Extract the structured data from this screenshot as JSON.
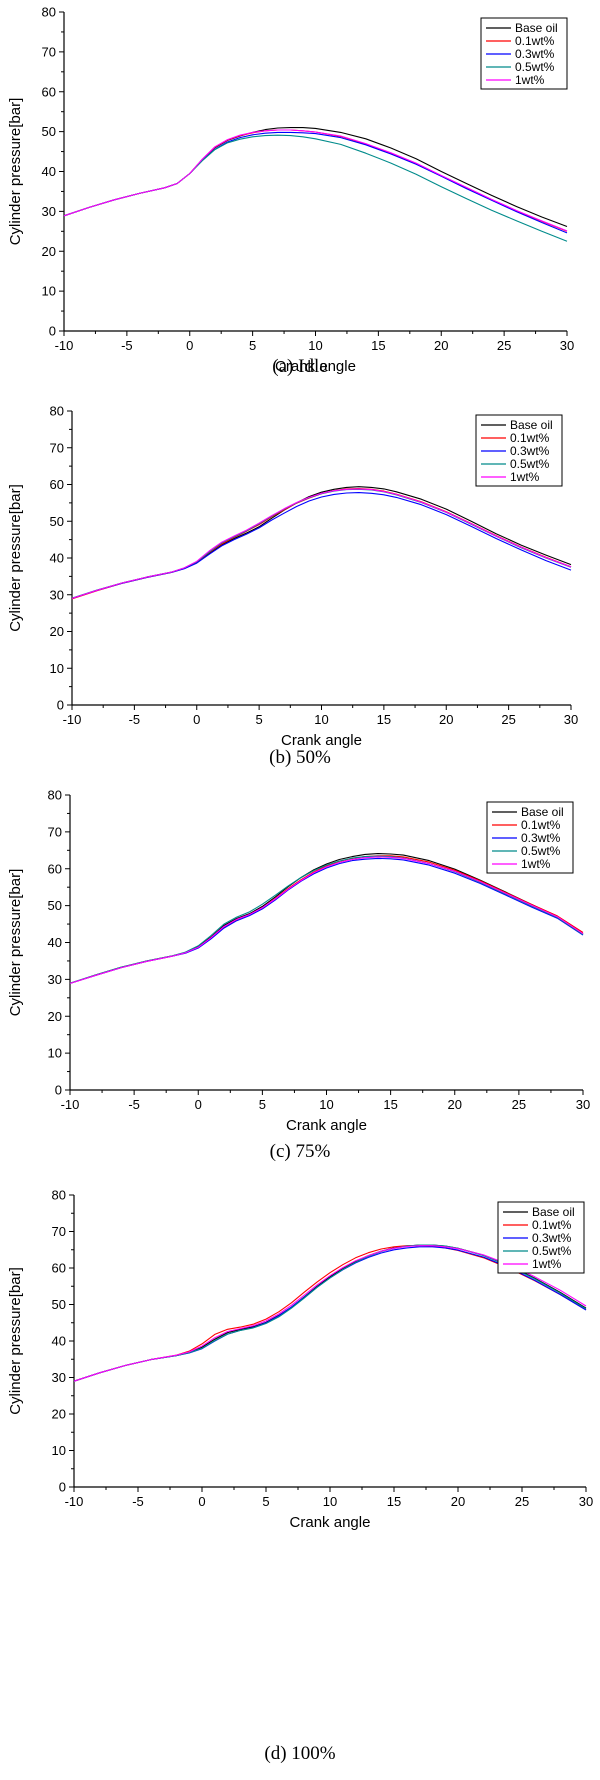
{
  "colors": {
    "Base oil": "#000000",
    "0.1wt%": "#ff0000",
    "0.3wt%": "#0000ff",
    "0.5wt%": "#008b8b",
    "1wt%": "#ff00ff"
  },
  "chart_data": [
    {
      "type": "line",
      "caption": "(a)  Idle",
      "xlabel": "Crank angle",
      "ylabel": "Cylinder pressure[bar]",
      "xlim": [
        -10,
        30
      ],
      "ylim": [
        0,
        80
      ],
      "xticks": [
        "-10",
        "-5",
        "0",
        "5",
        "10",
        "15",
        "20",
        "25",
        "30"
      ],
      "yticks": [
        "0",
        "10",
        "20",
        "30",
        "40",
        "50",
        "60",
        "70",
        "80"
      ],
      "legend_position": "top-right",
      "x": [
        -10,
        -8,
        -6,
        -4,
        -2,
        -1,
        0,
        1,
        2,
        3,
        4,
        5,
        6,
        7,
        8,
        9,
        10,
        12,
        14,
        16,
        18,
        20,
        22,
        24,
        26,
        28,
        30
      ],
      "series": [
        {
          "name": "Base oil",
          "values": [
            28.9,
            31.0,
            32.9,
            34.5,
            35.9,
            37.0,
            39.5,
            43.0,
            46.0,
            47.8,
            48.9,
            49.8,
            50.5,
            50.9,
            51.0,
            51.0,
            50.8,
            49.8,
            48.2,
            45.9,
            43.2,
            40.0,
            37.0,
            34.0,
            31.2,
            28.6,
            26.2
          ]
        },
        {
          "name": "0.1wt%",
          "values": [
            28.9,
            31.0,
            32.9,
            34.5,
            35.9,
            37.0,
            39.5,
            43.0,
            46.1,
            47.9,
            49.0,
            49.7,
            50.2,
            50.4,
            50.4,
            50.2,
            49.9,
            48.8,
            46.9,
            44.5,
            41.9,
            38.9,
            35.8,
            32.9,
            30.1,
            27.5,
            25.0
          ]
        },
        {
          "name": "0.3wt%",
          "values": [
            28.9,
            31.0,
            32.9,
            34.5,
            35.9,
            37.0,
            39.5,
            42.8,
            45.6,
            47.4,
            48.5,
            49.2,
            49.6,
            49.8,
            49.8,
            49.7,
            49.5,
            48.5,
            46.7,
            44.4,
            41.8,
            38.8,
            35.7,
            32.8,
            29.9,
            27.2,
            24.6
          ]
        },
        {
          "name": "0.5wt%",
          "values": [
            28.9,
            31.0,
            32.9,
            34.5,
            35.9,
            37.0,
            39.5,
            42.7,
            45.5,
            47.2,
            48.1,
            48.7,
            49.0,
            49.1,
            49.0,
            48.7,
            48.2,
            46.8,
            44.6,
            42.1,
            39.3,
            36.2,
            33.2,
            30.3,
            27.6,
            25.0,
            22.5
          ]
        },
        {
          "name": "1wt%",
          "values": [
            28.9,
            31.0,
            32.9,
            34.5,
            35.9,
            37.0,
            39.5,
            43.1,
            46.2,
            48.0,
            49.1,
            49.8,
            50.2,
            50.4,
            50.4,
            50.2,
            49.9,
            48.9,
            47.0,
            44.7,
            42.1,
            39.0,
            36.0,
            33.0,
            30.2,
            27.6,
            25.1
          ]
        }
      ]
    },
    {
      "type": "line",
      "caption": "(b)  50%",
      "xlabel": "Crank angle",
      "ylabel": "Cylinder pressure[bar]",
      "xlim": [
        -10,
        30
      ],
      "ylim": [
        0,
        80
      ],
      "xticks": [
        "-10",
        "-5",
        "0",
        "5",
        "10",
        "15",
        "20",
        "25",
        "30"
      ],
      "yticks": [
        "0",
        "10",
        "20",
        "30",
        "40",
        "50",
        "60",
        "70",
        "80"
      ],
      "legend_position": "top-right",
      "x": [
        -10,
        -8,
        -6,
        -4,
        -2,
        -1,
        0,
        1,
        2,
        3,
        4,
        5,
        6,
        7,
        8,
        9,
        10,
        11,
        12,
        13,
        14,
        15,
        16,
        18,
        20,
        22,
        24,
        26,
        28,
        30
      ],
      "series": [
        {
          "name": "Base oil",
          "values": [
            29.0,
            31.2,
            33.2,
            34.8,
            36.2,
            37.2,
            38.8,
            41.2,
            43.6,
            45.3,
            46.8,
            48.5,
            50.8,
            53.0,
            55.0,
            56.7,
            57.9,
            58.7,
            59.2,
            59.4,
            59.2,
            58.8,
            58.0,
            56.0,
            53.3,
            50.0,
            46.6,
            43.5,
            40.8,
            38.2
          ]
        },
        {
          "name": "0.1wt%",
          "values": [
            28.9,
            31.1,
            33.1,
            34.7,
            36.1,
            37.2,
            38.9,
            41.5,
            43.8,
            45.6,
            47.3,
            49.1,
            51.2,
            53.1,
            54.9,
            56.3,
            57.5,
            58.3,
            58.8,
            58.9,
            58.7,
            58.2,
            57.4,
            55.3,
            52.6,
            49.4,
            46.1,
            43.0,
            40.2,
            37.6
          ]
        },
        {
          "name": "0.3wt%",
          "values": [
            29.0,
            31.2,
            33.1,
            34.7,
            36.1,
            37.1,
            38.6,
            41.0,
            43.3,
            45.0,
            46.5,
            48.2,
            50.3,
            52.2,
            54.0,
            55.5,
            56.6,
            57.3,
            57.7,
            57.8,
            57.6,
            57.2,
            56.5,
            54.5,
            51.8,
            48.6,
            45.3,
            42.2,
            39.3,
            36.7
          ]
        },
        {
          "name": "0.5wt%",
          "values": [
            29.1,
            31.3,
            33.2,
            34.8,
            36.2,
            37.3,
            39.0,
            41.6,
            44.1,
            45.8,
            47.4,
            49.3,
            51.4,
            53.3,
            55.0,
            56.4,
            57.5,
            58.2,
            58.6,
            58.7,
            58.5,
            58.0,
            57.2,
            55.1,
            52.4,
            49.2,
            45.9,
            42.8,
            40.0,
            37.5
          ]
        },
        {
          "name": "1wt%",
          "values": [
            29.0,
            31.2,
            33.2,
            34.8,
            36.2,
            37.3,
            39.1,
            41.9,
            44.3,
            46.0,
            47.6,
            49.5,
            51.5,
            53.4,
            55.1,
            56.5,
            57.6,
            58.3,
            58.7,
            58.8,
            58.6,
            58.1,
            57.3,
            55.2,
            52.5,
            49.3,
            46.0,
            42.9,
            40.1,
            37.6
          ]
        }
      ]
    },
    {
      "type": "line",
      "caption": "(c)  75%",
      "xlabel": "Crank angle",
      "ylabel": "Cylinder pressure[bar]",
      "xlim": [
        -10,
        30
      ],
      "ylim": [
        0,
        80
      ],
      "xticks": [
        "-10",
        "-5",
        "0",
        "5",
        "10",
        "15",
        "20",
        "25",
        "30"
      ],
      "yticks": [
        "0",
        "10",
        "20",
        "30",
        "40",
        "50",
        "60",
        "70",
        "80"
      ],
      "legend_position": "top-right",
      "x": [
        -10,
        -8,
        -6,
        -4,
        -2,
        -1,
        0,
        1,
        2,
        3,
        4,
        5,
        6,
        7,
        8,
        9,
        10,
        11,
        12,
        13,
        14,
        15,
        16,
        18,
        20,
        22,
        24,
        26,
        28,
        30
      ],
      "series": [
        {
          "name": "Base oil",
          "values": [
            28.9,
            31.2,
            33.3,
            35.0,
            36.4,
            37.3,
            38.9,
            41.5,
            44.6,
            46.5,
            47.8,
            49.8,
            52.3,
            55.1,
            57.6,
            59.7,
            61.3,
            62.5,
            63.3,
            63.9,
            64.1,
            64.0,
            63.7,
            62.2,
            59.9,
            56.9,
            53.6,
            50.3,
            47.1,
            42.3
          ]
        },
        {
          "name": "0.1wt%",
          "values": [
            28.9,
            31.1,
            33.2,
            34.9,
            36.3,
            37.2,
            38.7,
            41.3,
            44.2,
            46.2,
            47.6,
            49.4,
            51.9,
            54.6,
            57.0,
            59.1,
            60.8,
            62.0,
            62.8,
            63.3,
            63.5,
            63.5,
            63.2,
            61.8,
            59.6,
            56.7,
            53.5,
            50.3,
            47.2,
            42.7
          ]
        },
        {
          "name": "0.3wt%",
          "values": [
            28.9,
            31.1,
            33.2,
            34.9,
            36.3,
            37.1,
            38.5,
            41.0,
            43.9,
            45.9,
            47.3,
            49.1,
            51.5,
            54.2,
            56.6,
            58.6,
            60.2,
            61.4,
            62.2,
            62.6,
            62.8,
            62.7,
            62.4,
            61.0,
            58.8,
            56.0,
            52.8,
            49.6,
            46.6,
            42.0
          ]
        },
        {
          "name": "0.5wt%",
          "values": [
            29.0,
            31.2,
            33.3,
            35.0,
            36.4,
            37.4,
            39.1,
            41.9,
            45.0,
            46.9,
            48.3,
            50.4,
            52.8,
            55.3,
            57.6,
            59.5,
            61.0,
            62.1,
            62.9,
            63.3,
            63.4,
            63.3,
            62.9,
            61.4,
            59.2,
            56.3,
            53.1,
            49.9,
            46.8,
            42.2
          ]
        },
        {
          "name": "1wt%",
          "values": [
            28.9,
            31.1,
            33.2,
            34.9,
            36.3,
            37.2,
            38.7,
            41.3,
            44.3,
            46.3,
            47.6,
            49.4,
            51.8,
            54.4,
            56.8,
            58.9,
            60.5,
            61.7,
            62.5,
            63.0,
            63.2,
            63.1,
            62.8,
            61.4,
            59.3,
            56.5,
            53.3,
            50.1,
            47.0,
            42.4
          ]
        }
      ]
    },
    {
      "type": "line",
      "caption": "(d)  100%",
      "xlabel": "Crank angle",
      "ylabel": "Cylinder pressure[bar]",
      "xlim": [
        -10,
        30
      ],
      "ylim": [
        0,
        80
      ],
      "xticks": [
        "-10",
        "-5",
        "0",
        "5",
        "10",
        "15",
        "20",
        "25",
        "30"
      ],
      "yticks": [
        "0",
        "10",
        "20",
        "30",
        "40",
        "50",
        "60",
        "70",
        "80"
      ],
      "legend_position": "top-right",
      "x": [
        -10,
        -8,
        -6,
        -4,
        -2,
        -1,
        0,
        1,
        2,
        3,
        4,
        5,
        6,
        7,
        8,
        9,
        10,
        11,
        12,
        13,
        14,
        15,
        16,
        17,
        18,
        19,
        20,
        22,
        24,
        26,
        28,
        30
      ],
      "series": [
        {
          "name": "Base oil",
          "values": [
            29.0,
            31.3,
            33.3,
            34.9,
            36.0,
            36.9,
            38.3,
            40.5,
            42.3,
            43.2,
            43.9,
            45.1,
            47.0,
            49.3,
            52.1,
            55.0,
            57.6,
            59.9,
            61.8,
            63.4,
            64.6,
            65.5,
            66.0,
            66.3,
            66.3,
            66.0,
            65.4,
            63.5,
            60.6,
            57.2,
            53.3,
            49.0
          ]
        },
        {
          "name": "0.1wt%",
          "values": [
            29.0,
            31.3,
            33.3,
            34.9,
            36.1,
            37.2,
            39.2,
            41.8,
            43.2,
            43.8,
            44.6,
            46.0,
            48.0,
            50.5,
            53.4,
            56.2,
            58.7,
            60.9,
            62.8,
            64.2,
            65.2,
            65.8,
            66.1,
            66.2,
            66.0,
            65.5,
            64.8,
            62.8,
            59.9,
            56.5,
            52.7,
            48.6
          ]
        },
        {
          "name": "0.3wt%",
          "values": [
            29.0,
            31.3,
            33.3,
            34.9,
            36.0,
            36.7,
            37.9,
            40.0,
            41.9,
            42.9,
            43.7,
            45.0,
            46.9,
            49.3,
            52.0,
            54.8,
            57.3,
            59.5,
            61.4,
            62.9,
            64.1,
            65.0,
            65.5,
            65.8,
            65.8,
            65.5,
            64.9,
            63.0,
            60.1,
            56.6,
            52.7,
            48.5
          ]
        },
        {
          "name": "0.5wt%",
          "values": [
            29.0,
            31.3,
            33.3,
            34.9,
            36.0,
            36.8,
            38.0,
            40.1,
            41.9,
            42.9,
            43.6,
            44.8,
            46.6,
            49.0,
            51.8,
            54.7,
            57.3,
            59.6,
            61.6,
            63.2,
            64.5,
            65.4,
            66.0,
            66.3,
            66.3,
            66.0,
            65.4,
            63.4,
            60.5,
            57.0,
            53.1,
            48.8
          ]
        },
        {
          "name": "1wt%",
          "values": [
            29.0,
            31.3,
            33.3,
            34.9,
            36.1,
            37.0,
            38.6,
            40.9,
            42.6,
            43.4,
            44.2,
            45.5,
            47.4,
            49.8,
            52.6,
            55.4,
            57.9,
            60.1,
            62.0,
            63.4,
            64.6,
            65.4,
            65.9,
            66.1,
            66.1,
            65.8,
            65.3,
            63.6,
            60.9,
            57.6,
            53.9,
            49.6
          ]
        }
      ]
    }
  ]
}
